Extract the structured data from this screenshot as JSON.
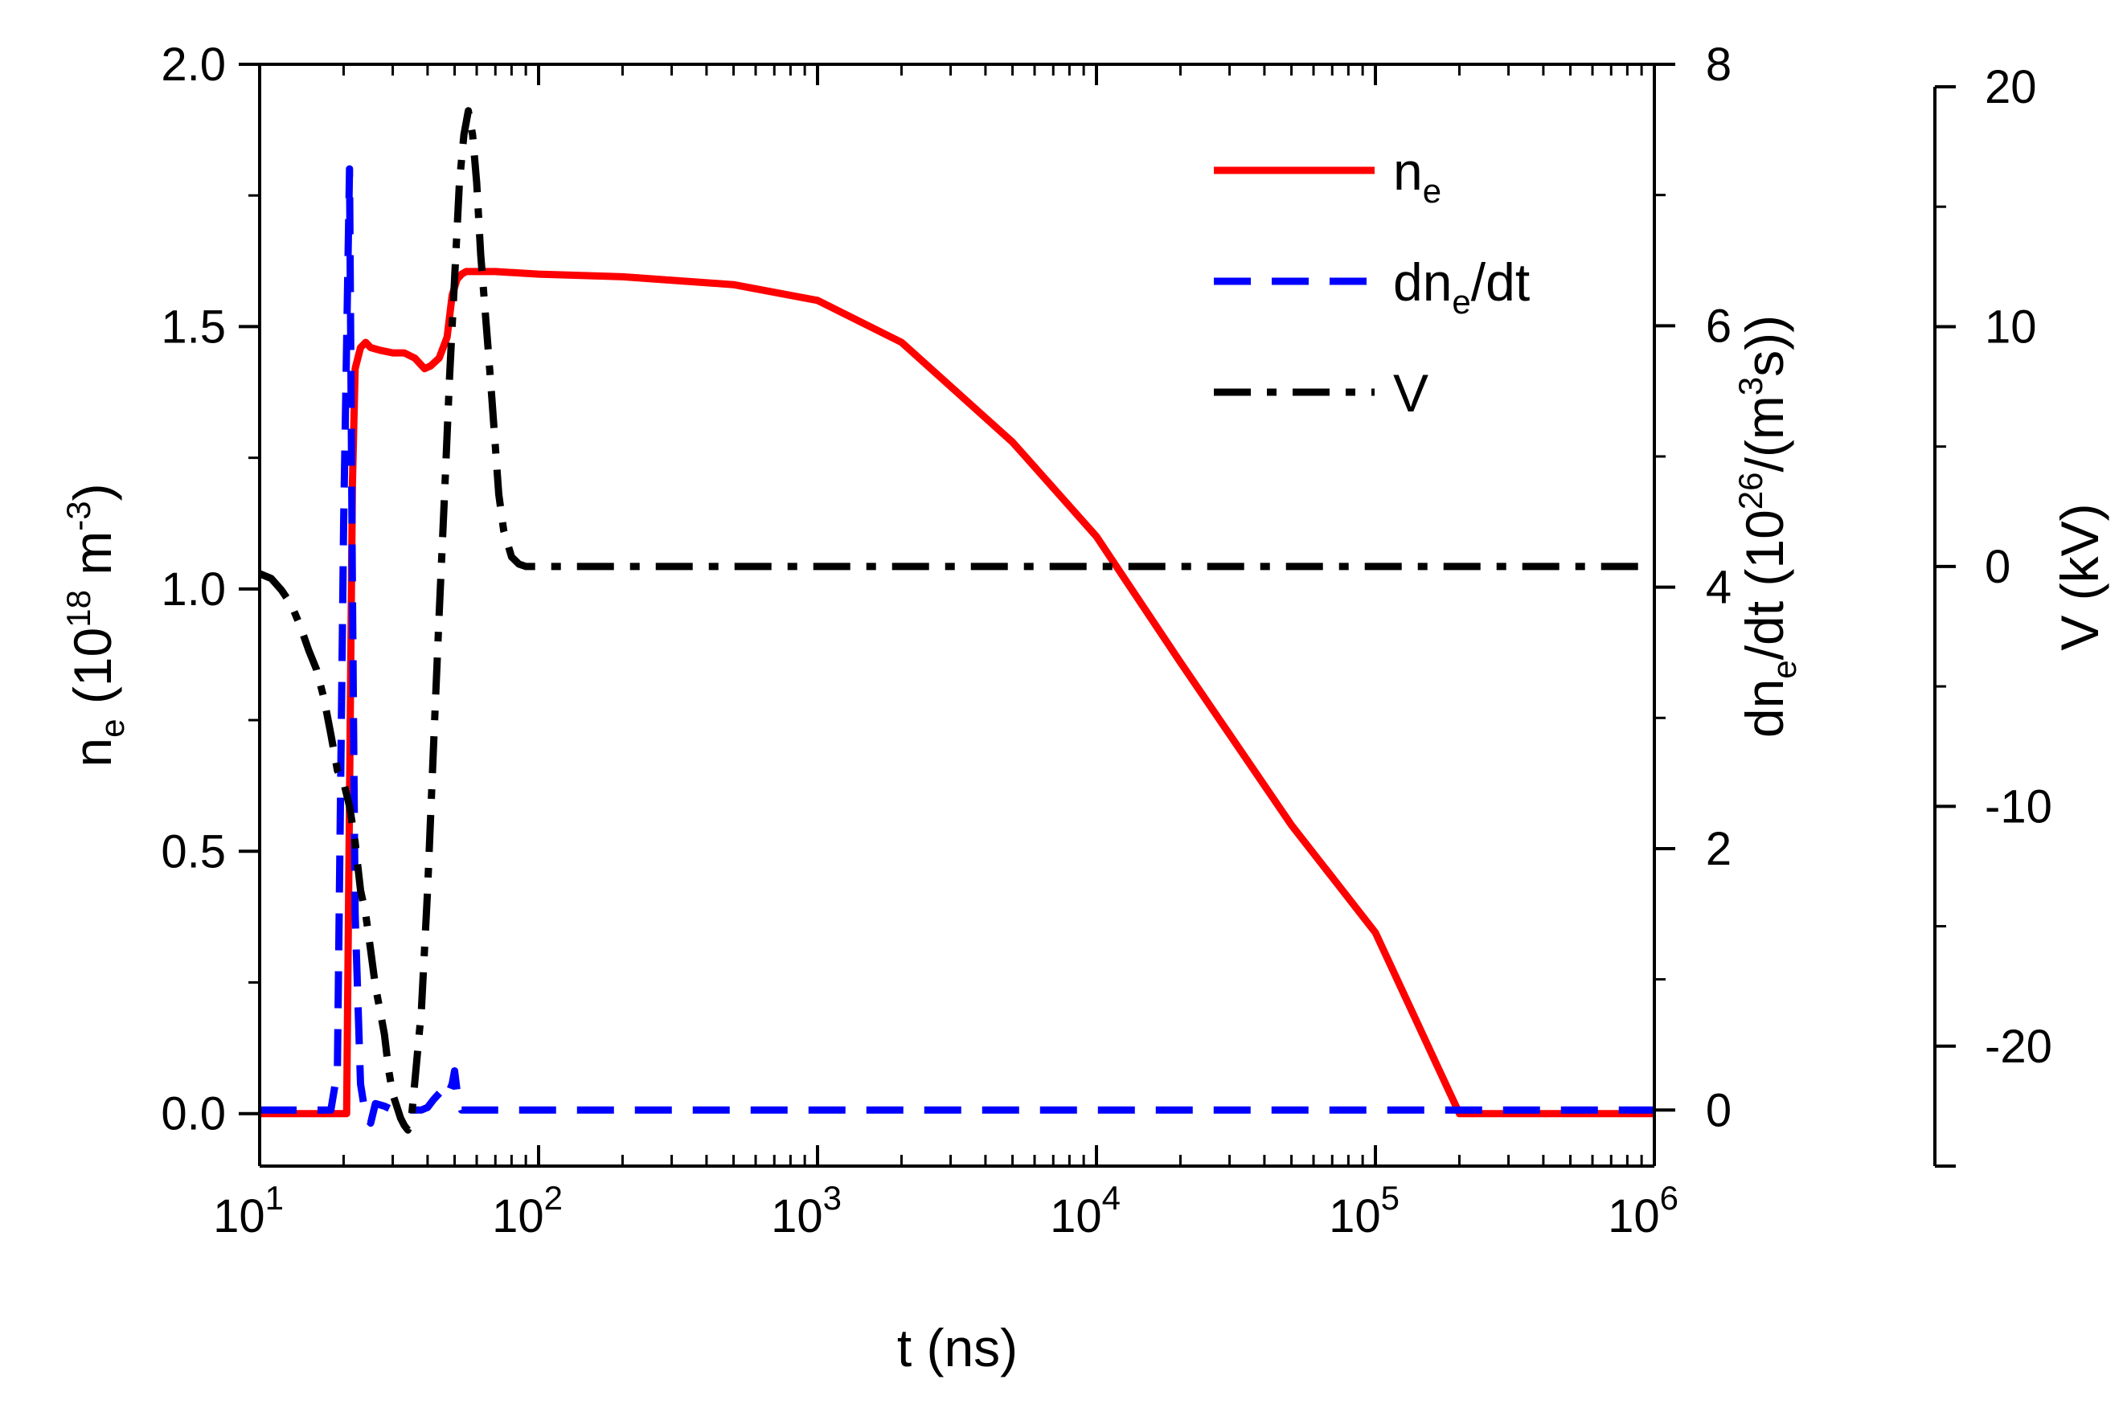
{
  "chart_data": {
    "type": "line",
    "x_scale": "log",
    "xlim": [
      10,
      1000000
    ],
    "xlabel": {
      "main": "t (ns)"
    },
    "x_ticks": [
      {
        "value": 10,
        "base": "10",
        "exp": "1"
      },
      {
        "value": 100,
        "base": "10",
        "exp": "2"
      },
      {
        "value": 1000,
        "base": "10",
        "exp": "3"
      },
      {
        "value": 10000,
        "base": "10",
        "exp": "4"
      },
      {
        "value": 100000,
        "base": "10",
        "exp": "5"
      },
      {
        "value": 1000000,
        "base": "10",
        "exp": "6"
      }
    ],
    "axes": {
      "left": {
        "ylim": [
          -0.1,
          2.0
        ],
        "ticks": [
          "0.0",
          "0.5",
          "1.0",
          "1.5",
          "2.0"
        ],
        "tick_values": [
          0.0,
          0.5,
          1.0,
          1.5,
          2.0
        ],
        "label": {
          "p1": "n",
          "p1_sub": "e",
          "p2": " (10",
          "p2_sup": "18",
          "p3": " m",
          "p3_sup": "-3",
          "p4": ")"
        }
      },
      "right_inner": {
        "ylim": [
          -0.4286,
          8.0
        ],
        "ticks": [
          "0",
          "2",
          "4",
          "6",
          "8"
        ],
        "tick_values": [
          0,
          2,
          4,
          6,
          8
        ],
        "label": {
          "p1": "dn",
          "p1_sub": "e",
          "p2": "/dt (10",
          "p2_sup": "26",
          "p3": "/(m",
          "p3_sup": "3",
          "p4": "s))"
        }
      },
      "right_outer": {
        "ylim": [
          -25,
          20
        ],
        "ticks": [
          "-20",
          "-10",
          "0",
          "10",
          "20"
        ],
        "tick_values": [
          -20,
          -10,
          0,
          10,
          20
        ],
        "label": {
          "main": "V (kV)"
        }
      }
    },
    "series": [
      {
        "name": "n_e",
        "legend": {
          "main": "n",
          "sub": "e"
        },
        "axis": "left",
        "color": "#ff0000",
        "style": "solid",
        "x": [
          10,
          19,
          20.5,
          21,
          21.5,
          22,
          23,
          24,
          25,
          27,
          30,
          33,
          36,
          39,
          41,
          44,
          47,
          49,
          51,
          53,
          55,
          60,
          70,
          100,
          200,
          500,
          1000,
          2000,
          5000,
          10000,
          20000,
          50000,
          100000,
          200000,
          1000000
        ],
        "y": [
          0,
          0,
          0,
          0.6,
          1.2,
          1.42,
          1.46,
          1.47,
          1.46,
          1.455,
          1.45,
          1.45,
          1.44,
          1.42,
          1.425,
          1.44,
          1.48,
          1.56,
          1.59,
          1.6,
          1.605,
          1.605,
          1.605,
          1.6,
          1.595,
          1.58,
          1.55,
          1.47,
          1.28,
          1.1,
          0.86,
          0.55,
          0.345,
          0,
          0
        ]
      },
      {
        "name": "dn_e/dt",
        "legend": {
          "main": "dn",
          "sub": "e",
          "tail": "/dt"
        },
        "axis": "right_inner",
        "color": "#0000ff",
        "style": "dashed",
        "x": [
          10,
          18,
          19,
          20,
          21,
          21.5,
          22,
          23,
          24,
          25,
          26,
          28,
          30,
          32,
          35,
          38,
          40,
          42,
          45,
          47,
          49,
          50,
          51,
          52,
          53,
          55,
          1000000
        ],
        "y": [
          0,
          0,
          0.3,
          4.5,
          7.2,
          4,
          1.5,
          0.2,
          -0.05,
          -0.1,
          0.05,
          0.03,
          0,
          0,
          0,
          0,
          0.02,
          0.08,
          0.15,
          0.1,
          0.2,
          0.3,
          0.15,
          0.05,
          0,
          0,
          0
        ]
      },
      {
        "name": "V",
        "legend": {
          "main": "V"
        },
        "axis": "right_outer",
        "color": "#000000",
        "style": "dashdot",
        "x": [
          10,
          11,
          12,
          13,
          14,
          15,
          16,
          17,
          18,
          19,
          20,
          21,
          22,
          23,
          24,
          25,
          26,
          27,
          28,
          29,
          30,
          31,
          32,
          33,
          34,
          35,
          36,
          38,
          40,
          42,
          44,
          46,
          48,
          50,
          52,
          54,
          56,
          58,
          60,
          62,
          64,
          66,
          68,
          70,
          72,
          75,
          80,
          85,
          90,
          100,
          200,
          1000000
        ],
        "y": [
          -0.3,
          -0.5,
          -1,
          -1.6,
          -2.5,
          -3.5,
          -4.3,
          -5.5,
          -7,
          -8.5,
          -9,
          -10,
          -11.5,
          -13.5,
          -14.5,
          -16,
          -17.5,
          -18.5,
          -19.5,
          -21,
          -22,
          -22.5,
          -23,
          -23.3,
          -23.5,
          -23,
          -21.5,
          -18.5,
          -13.5,
          -7.5,
          -2,
          3,
          8,
          12,
          16,
          18,
          19,
          18,
          16,
          13,
          11,
          9,
          7,
          5,
          3,
          1.5,
          0.4,
          0.1,
          0,
          0,
          0,
          0
        ]
      }
    ]
  }
}
